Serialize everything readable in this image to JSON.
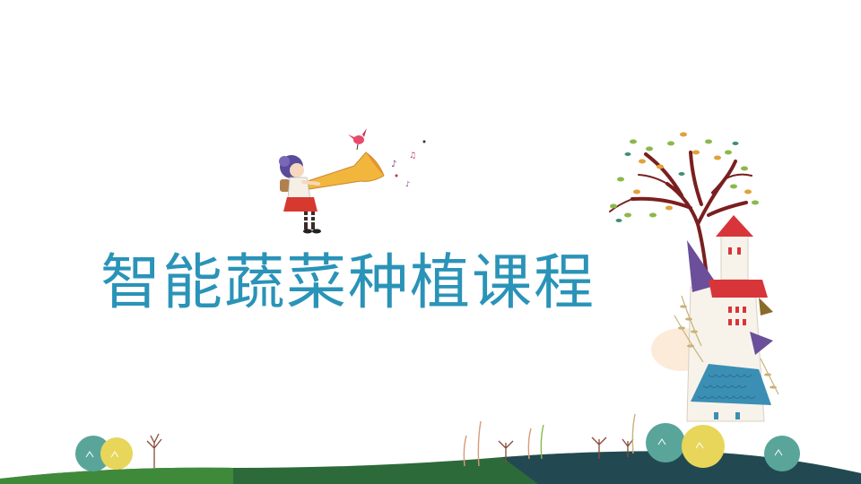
{
  "slide": {
    "title": "智能蔬菜种植课程"
  },
  "illustration": {
    "character": "girl-with-trumpet",
    "scenery": [
      "tree",
      "castle",
      "hill",
      "bushes",
      "trees"
    ]
  }
}
